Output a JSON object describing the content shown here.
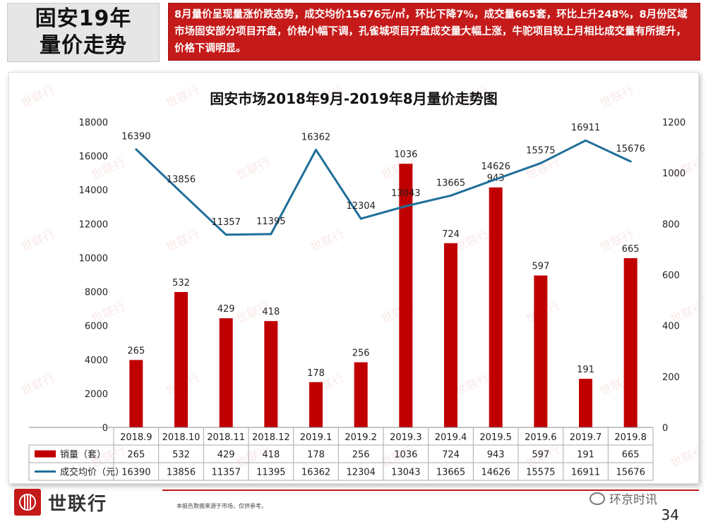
{
  "header": {
    "title_line1": "固安19年",
    "title_line2": "量价走势",
    "summary": "8月量价呈现量涨价跌态势，成交均价15676元/㎡，环比下降7%，成交量665套，环比上升248%，8月份区域市场固安部分项目开盘，价格小幅下调，孔雀城项目开盘成交量大幅上涨，牛驼项目较上月相比成交量有所提升，价格下调明显。"
  },
  "chart_data": {
    "type": "bar+line",
    "title": "固安市场2018年9月-2019年8月量价走势图",
    "categories": [
      "2018.9",
      "2018.10",
      "2018.11",
      "2018.12",
      "2019.1",
      "2019.2",
      "2019.3",
      "2019.4",
      "2019.5",
      "2019.6",
      "2019.7",
      "2019.8"
    ],
    "series": [
      {
        "name": "销量（套）",
        "type": "bar",
        "axis": "right",
        "color": "#c00000",
        "values": [
          265,
          532,
          429,
          418,
          178,
          256,
          1036,
          724,
          943,
          597,
          191,
          665
        ]
      },
      {
        "name": "成交均价（元）",
        "type": "line",
        "axis": "left",
        "color": "#1f6f9a",
        "values": [
          16390,
          13856,
          11357,
          11395,
          16362,
          12304,
          13043,
          13665,
          14626,
          15575,
          16911,
          15676
        ]
      }
    ],
    "y_left": {
      "ylim": [
        0,
        18000
      ],
      "ticks": [
        0,
        2000,
        4000,
        6000,
        8000,
        10000,
        12000,
        14000,
        16000,
        18000
      ]
    },
    "y_right": {
      "ylim": [
        0,
        1200
      ],
      "ticks": [
        0,
        200,
        400,
        600,
        800,
        1000,
        1200
      ]
    },
    "data_table": true,
    "watermark": "世联行"
  },
  "footer": {
    "brand": "世联行",
    "disclaimer": "本报告数据来源于市场，仅供参考。",
    "wechat": "环京时讯",
    "page": "34"
  }
}
